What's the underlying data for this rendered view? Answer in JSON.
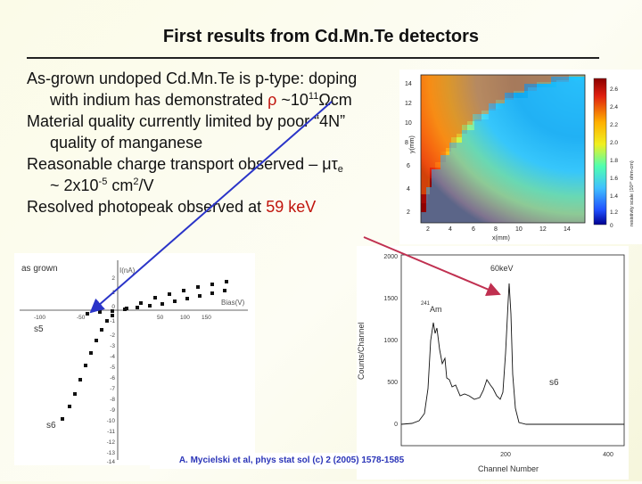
{
  "slide": {
    "title": "First results from Cd.Mn.Te detectors",
    "b1_l1": "As-grown undoped Cd.Mn.Te is p-type: doping",
    "b1_l2_pre": "with indium has demonstrated ",
    "b1_rho": "ρ",
    "b1_approx": " ~10",
    "b1_exp": "11",
    "b1_unit": "Ωcm",
    "b2_l1": "Material quality currently limited by poor “4N”",
    "b2_l2": "quality of manganese",
    "b3_l1_pre": "Reasonable charge transport observed – ",
    "b3_mutau": "μτ",
    "b3_sub": "e",
    "b3_l2_pre": "~ 2x10",
    "b3_exp1": "-5",
    "b3_mid": " cm",
    "b3_exp2": "2",
    "b3_post": "/V",
    "b4_pre": "Resolved photopeak observed at ",
    "b4_red": "59 keV",
    "citation": "A. Mycielski et al, phys stat sol (c) 2 (2005) 1578-1585"
  },
  "colors": {
    "accent_red": "#c0140c",
    "arrow_blue": "#2a34c8",
    "citation_blue": "#2a34b8"
  },
  "heatmap": {
    "xlabel": "x(mm)",
    "ylabel": "y(mm)",
    "xticks": [
      "2",
      "4",
      "6",
      "8",
      "10",
      "12",
      "14"
    ],
    "yticks": [
      "14",
      "12",
      "10",
      "8",
      "6",
      "4",
      "2"
    ],
    "colorbar_label": "resistivity scale (10¹⁰ ohm-cm)",
    "colorbar_ticks": [
      "2.6",
      "2.4",
      "2.2",
      "2.0",
      "1.8",
      "1.6",
      "1.4",
      "1.2",
      "0"
    ]
  },
  "iv": {
    "label_top": "as grown",
    "ylabel": "I(nA)",
    "xlabel": "Bias(V)",
    "yticks": [
      "2",
      "1",
      "0",
      "-1",
      "-2",
      "-3",
      "-4",
      "-5",
      "-6",
      "-7",
      "-8",
      "-9",
      "-10",
      "-11",
      "-12",
      "-13",
      "-14"
    ],
    "xticks": [
      "-100",
      "-50",
      "50",
      "100",
      "150"
    ],
    "label_s5": "s5",
    "label_s6": "s6"
  },
  "spectrum": {
    "xlabel": "Channel Number",
    "ylabel": "Counts/Channel",
    "yticks": [
      "2000",
      "1500",
      "1000",
      "500",
      "0"
    ],
    "xticks": [
      "200",
      "400"
    ],
    "peak_label": "60keV",
    "source_sup": "241",
    "source": "Am",
    "sample": "s6"
  }
}
